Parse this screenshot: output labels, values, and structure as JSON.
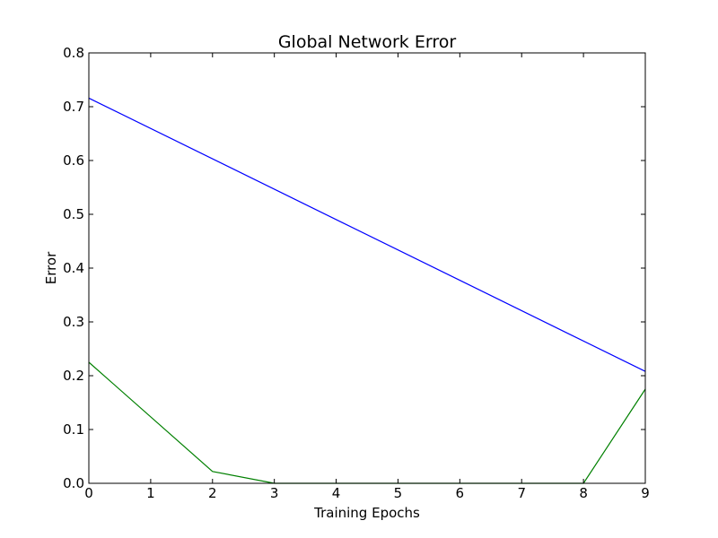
{
  "chart_data": {
    "type": "line",
    "title": "Global Network Error",
    "xlabel": "Training Epochs",
    "ylabel": "Error",
    "xlim": [
      0,
      9
    ],
    "ylim": [
      0,
      0.8
    ],
    "xticks": [
      0,
      1,
      2,
      3,
      4,
      5,
      6,
      7,
      8,
      9
    ],
    "xtick_labels": [
      "0",
      "1",
      "2",
      "3",
      "4",
      "5",
      "6",
      "7",
      "8",
      "9"
    ],
    "yticks": [
      0.0,
      0.1,
      0.2,
      0.3,
      0.4,
      0.5,
      0.6,
      0.7,
      0.8
    ],
    "ytick_labels": [
      "0.0",
      "0.1",
      "0.2",
      "0.3",
      "0.4",
      "0.5",
      "0.6",
      "0.7",
      "0.8"
    ],
    "grid": false,
    "series": [
      {
        "name": "blue-series",
        "color": "#0000ff",
        "x": [
          0,
          9
        ],
        "y": [
          0.716,
          0.208
        ]
      },
      {
        "name": "green-series",
        "color": "#008000",
        "x": [
          0,
          2,
          3,
          8,
          9
        ],
        "y": [
          0.225,
          0.022,
          0.0,
          0.0,
          0.175
        ]
      }
    ]
  }
}
